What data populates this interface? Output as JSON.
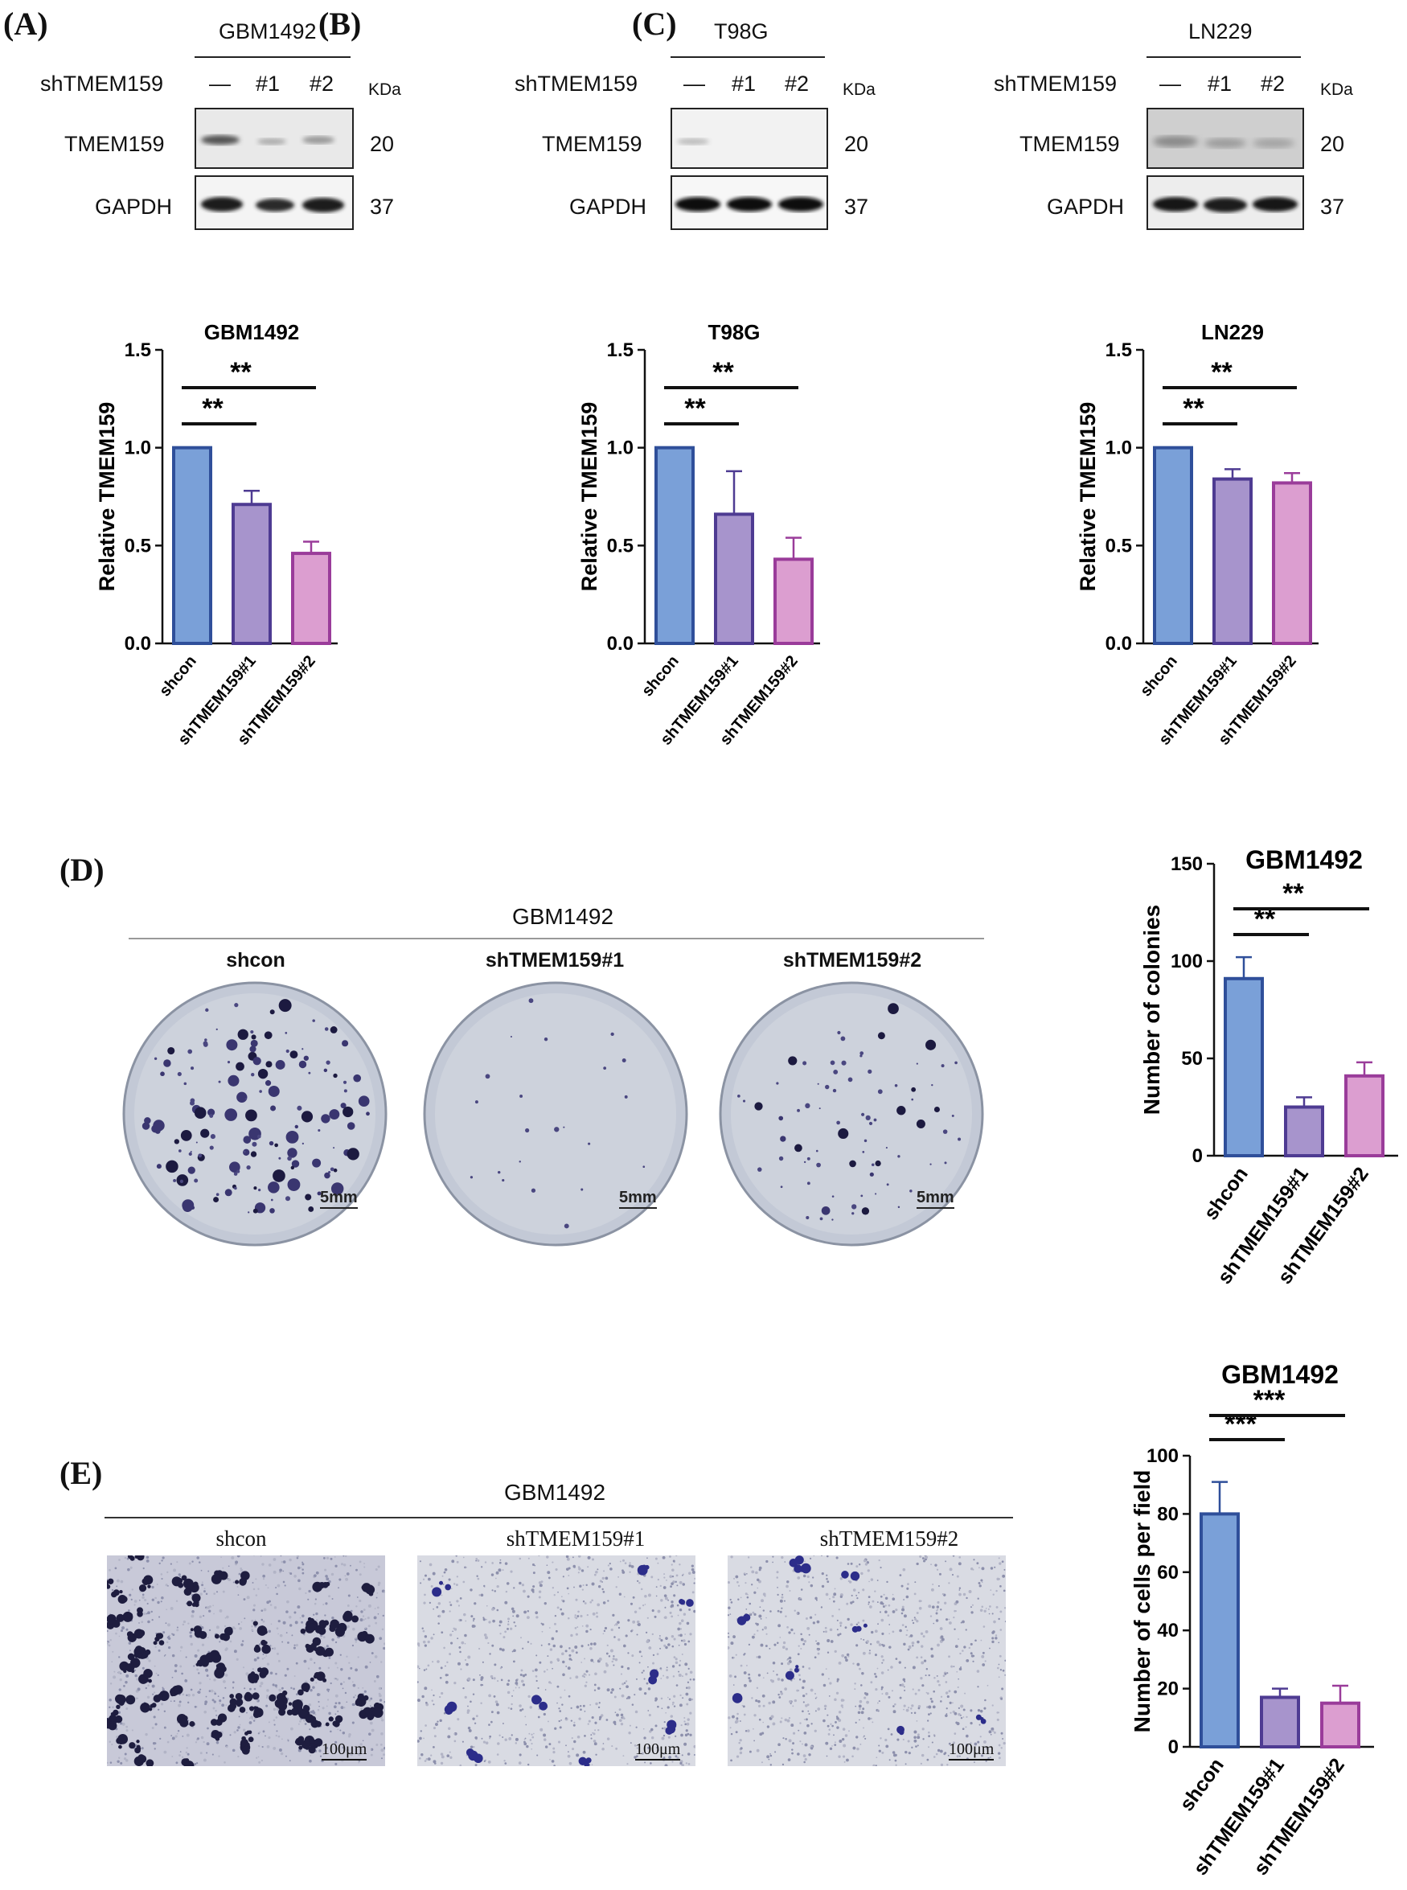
{
  "colors": {
    "shcon_fill": "#7aa0d8",
    "shcon_edge": "#2f4f9a",
    "sh1_fill": "#a794cc",
    "sh1_edge": "#4e3b92",
    "sh2_fill": "#dc9ed0",
    "sh2_edge": "#9a3c9a"
  },
  "panels": {
    "A": {
      "letter": "(A)",
      "cell": "GBM1492"
    },
    "B": {
      "letter": "(B)",
      "cell": "T98G"
    },
    "C": {
      "letter": "(C)",
      "cell": "LN229"
    },
    "D": {
      "letter": "(D)",
      "cell": "GBM1492",
      "scale": "5mm"
    },
    "E": {
      "letter": "(E)",
      "cell": "GBM1492",
      "scale": "100μm"
    }
  },
  "western": {
    "row_label": "shTMEM159",
    "lanes": [
      "—",
      "#1",
      "#2"
    ],
    "unit": "KDa",
    "proteins": [
      {
        "name": "TMEM159",
        "kda": "20"
      },
      {
        "name": "GAPDH",
        "kda": "37"
      }
    ]
  },
  "image_labels": [
    "shcon",
    "shTMEM159#1",
    "shTMEM159#2"
  ],
  "chart_data": [
    {
      "type": "bar",
      "panel": "A",
      "title": "GBM1492",
      "ylabel": "Relative TMEM159",
      "categories": [
        "shcon",
        "shTMEM159#1",
        "shTMEM159#2"
      ],
      "values": [
        1.0,
        0.71,
        0.46
      ],
      "errors": [
        0,
        0.07,
        0.06
      ],
      "ylim": [
        0,
        1.5
      ],
      "yticks": [
        "0.0",
        "0.5",
        "1.0",
        "1.5"
      ],
      "significance": [
        {
          "from": 0,
          "to": 1,
          "label": "**"
        },
        {
          "from": 0,
          "to": 2,
          "label": "**"
        }
      ]
    },
    {
      "type": "bar",
      "panel": "B",
      "title": "T98G",
      "ylabel": "Relative TMEM159",
      "categories": [
        "shcon",
        "shTMEM159#1",
        "shTMEM159#2"
      ],
      "values": [
        1.0,
        0.66,
        0.43
      ],
      "errors": [
        0,
        0.22,
        0.11
      ],
      "ylim": [
        0,
        1.5
      ],
      "yticks": [
        "0.0",
        "0.5",
        "1.0",
        "1.5"
      ],
      "significance": [
        {
          "from": 0,
          "to": 1,
          "label": "**"
        },
        {
          "from": 0,
          "to": 2,
          "label": "**"
        }
      ]
    },
    {
      "type": "bar",
      "panel": "C",
      "title": "LN229",
      "ylabel": "Relative TMEM159",
      "categories": [
        "shcon",
        "shTMEM159#1",
        "shTMEM159#2"
      ],
      "values": [
        1.0,
        0.84,
        0.82
      ],
      "errors": [
        0,
        0.05,
        0.05
      ],
      "ylim": [
        0,
        1.5
      ],
      "yticks": [
        "0.0",
        "0.5",
        "1.0",
        "1.5"
      ],
      "significance": [
        {
          "from": 0,
          "to": 1,
          "label": "**"
        },
        {
          "from": 0,
          "to": 2,
          "label": "**"
        }
      ]
    },
    {
      "type": "bar",
      "panel": "D",
      "title": "GBM1492",
      "ylabel": "Number of colonies",
      "categories": [
        "shcon",
        "shTMEM159#1",
        "shTMEM159#2"
      ],
      "values": [
        91,
        25,
        41
      ],
      "errors": [
        11,
        5,
        7
      ],
      "ylim": [
        0,
        150
      ],
      "yticks": [
        "0",
        "50",
        "100",
        "150"
      ],
      "significance": [
        {
          "from": 0,
          "to": 1,
          "label": "**"
        },
        {
          "from": 0,
          "to": 2,
          "label": "**"
        }
      ]
    },
    {
      "type": "bar",
      "panel": "E",
      "title": "GBM1492",
      "ylabel": "Number of cells per field",
      "categories": [
        "shcon",
        "shTMEM159#1",
        "shTMEM159#2"
      ],
      "values": [
        80,
        17,
        15
      ],
      "errors": [
        11,
        3,
        6
      ],
      "ylim": [
        0,
        100
      ],
      "yticks": [
        "0",
        "20",
        "40",
        "60",
        "80",
        "100"
      ],
      "significance": [
        {
          "from": 0,
          "to": 1,
          "label": "***"
        },
        {
          "from": 0,
          "to": 2,
          "label": "***"
        }
      ]
    }
  ]
}
